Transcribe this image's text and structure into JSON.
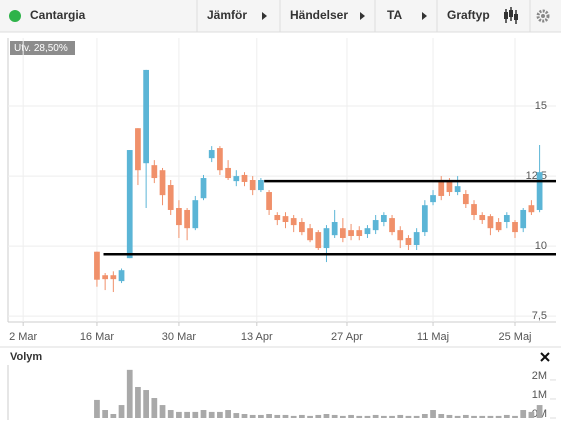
{
  "toolbar": {
    "title": "Cantargia",
    "menu": [
      "Jämför",
      "Händelser",
      "TA",
      "Graftyp"
    ]
  },
  "chart_data": [
    {
      "type": "candlestick",
      "annotation": "Utv. 28,50%",
      "x": [
        10,
        11,
        12,
        13,
        14,
        15,
        16,
        17,
        18,
        19,
        20,
        21,
        22,
        23,
        24,
        25,
        26,
        27,
        28,
        29,
        30,
        31,
        32,
        33,
        34,
        35,
        36,
        37,
        38,
        39,
        40,
        41,
        42,
        43,
        44,
        45,
        46,
        47,
        48,
        49,
        50,
        51,
        52,
        53,
        54,
        55,
        56,
        57,
        58,
        59,
        60,
        61,
        62,
        63,
        64
      ],
      "open": [
        9.8,
        8.96,
        8.96,
        8.75,
        9.57,
        14.21,
        12.96,
        12.89,
        12.71,
        12.18,
        11.36,
        11.29,
        10.64,
        11.71,
        13.14,
        13.5,
        12.79,
        12.32,
        12.54,
        12.36,
        12.0,
        11.93,
        11.11,
        11.07,
        11.0,
        10.86,
        10.64,
        10.5,
        9.93,
        10.39,
        10.64,
        10.57,
        10.57,
        10.43,
        10.57,
        10.86,
        11.0,
        10.57,
        10.29,
        10.04,
        10.5,
        11.57,
        12.29,
        12.29,
        11.93,
        11.86,
        11.5,
        11.11,
        11.07,
        10.86,
        10.86,
        10.86,
        10.64,
        11.46,
        11.29
      ],
      "high": [
        9.8,
        9.04,
        9.1,
        9.2,
        13.43,
        14.21,
        16.29,
        13.07,
        12.79,
        12.36,
        11.64,
        11.36,
        11.79,
        12.54,
        13.57,
        13.57,
        13.07,
        12.71,
        12.64,
        12.5,
        12.43,
        12.0,
        11.21,
        11.21,
        11.11,
        11.0,
        10.79,
        10.57,
        10.75,
        11.29,
        11.0,
        10.79,
        10.71,
        10.75,
        11.11,
        11.21,
        11.11,
        10.71,
        10.39,
        10.64,
        11.64,
        12.0,
        12.5,
        12.43,
        12.5,
        12.0,
        11.64,
        11.21,
        11.14,
        11.0,
        11.21,
        10.93,
        11.36,
        11.64,
        13.61
      ],
      "low": [
        8.55,
        8.43,
        8.36,
        8.68,
        9.57,
        12.18,
        11.36,
        12.25,
        11.46,
        11.11,
        10.29,
        10.21,
        10.57,
        11.64,
        13.0,
        12.54,
        12.36,
        12.14,
        12.14,
        11.82,
        11.93,
        11.11,
        10.75,
        10.64,
        10.5,
        10.39,
        10.14,
        9.86,
        9.43,
        10.29,
        10.14,
        10.21,
        10.21,
        10.29,
        10.43,
        10.71,
        10.39,
        9.93,
        9.86,
        9.86,
        10.36,
        11.46,
        11.64,
        11.79,
        11.82,
        11.36,
        10.93,
        10.79,
        10.39,
        10.5,
        10.64,
        10.29,
        10.5,
        11.11,
        11.21
      ],
      "close": [
        8.8,
        8.82,
        8.82,
        9.14,
        13.43,
        12.71,
        16.29,
        12.43,
        11.82,
        11.29,
        10.75,
        10.64,
        11.64,
        12.43,
        13.43,
        12.71,
        12.43,
        12.5,
        12.29,
        12.0,
        12.36,
        11.29,
        10.93,
        10.86,
        10.75,
        10.5,
        10.21,
        9.93,
        10.64,
        10.86,
        10.29,
        10.36,
        10.36,
        10.64,
        10.93,
        11.11,
        10.5,
        10.21,
        10.04,
        10.5,
        11.46,
        11.82,
        11.79,
        11.93,
        12.14,
        11.5,
        11.11,
        10.93,
        10.64,
        10.57,
        11.11,
        10.5,
        11.29,
        11.21,
        12.64
      ],
      "up_color": "#5bb5d6",
      "down_color": "#f0906a",
      "xlim": [
        -0.85,
        66
      ],
      "xticks": [
        {
          "value": 1,
          "label": "2 Mar"
        },
        {
          "value": 10,
          "label": "16 Mar"
        },
        {
          "value": 20,
          "label": "30 Mar"
        },
        {
          "value": 29.5,
          "label": "13 Apr"
        },
        {
          "value": 40.5,
          "label": "27 Apr"
        },
        {
          "value": 51,
          "label": "11 Maj"
        },
        {
          "value": 61,
          "label": "25 Maj"
        }
      ],
      "ylim": [
        7.29,
        17.43
      ],
      "yticks": [
        {
          "value": 7.5,
          "label": "7,5"
        },
        10,
        {
          "value": 12.5,
          "label": "12,5"
        },
        15
      ],
      "grid": true,
      "trend_lines": [
        {
          "y": 12.32,
          "x_start": 30.4,
          "color": "#000000"
        },
        {
          "y": 9.71,
          "x_start": 10.8,
          "color": "#000000"
        }
      ]
    },
    {
      "type": "bar",
      "title": "Volym",
      "values": [
        0.95,
        0.42,
        0.21,
        0.68,
        2.53,
        1.63,
        1.47,
        1.05,
        0.68,
        0.42,
        0.32,
        0.32,
        0.32,
        0.42,
        0.32,
        0.32,
        0.42,
        0.26,
        0.21,
        0.16,
        0.16,
        0.21,
        0.16,
        0.16,
        0.11,
        0.16,
        0.11,
        0.16,
        0.21,
        0.16,
        0.11,
        0.16,
        0.11,
        0.11,
        0.16,
        0.11,
        0.11,
        0.16,
        0.11,
        0.11,
        0.21,
        0.42,
        0.21,
        0.16,
        0.11,
        0.16,
        0.11,
        0.11,
        0.11,
        0.11,
        0.16,
        0.11,
        0.42,
        0.32,
        0.68
      ],
      "color": "#a9a9a9",
      "ylim": [
        0,
        2.68
      ],
      "yticks": [
        {
          "value": 0,
          "label": "0M"
        },
        {
          "value": 1,
          "label": "1M"
        },
        {
          "value": 2,
          "label": "2M"
        }
      ]
    }
  ]
}
